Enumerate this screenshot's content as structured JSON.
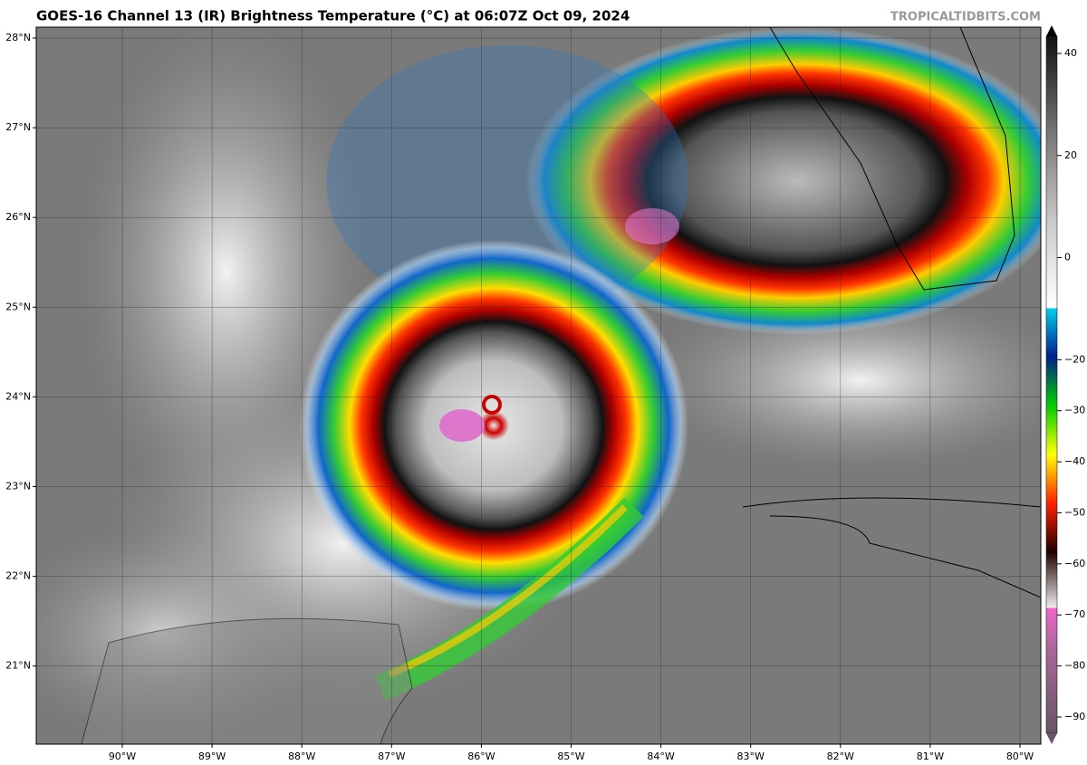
{
  "header": {
    "title": "GOES-16 Channel 13 (IR) Brightness Temperature (°C) at 06:07Z Oct 09, 2024",
    "credit": "TROPICALTIDBITS.COM"
  },
  "map": {
    "lat_ticks": [
      {
        "value": 28,
        "label": "28°N"
      },
      {
        "value": 27,
        "label": "27°N"
      },
      {
        "value": 26,
        "label": "26°N"
      },
      {
        "value": 25,
        "label": "25°N"
      },
      {
        "value": 24,
        "label": "24°N"
      },
      {
        "value": 23,
        "label": "23°N"
      },
      {
        "value": 22,
        "label": "22°N"
      },
      {
        "value": 21,
        "label": "21°N"
      }
    ],
    "lon_ticks": [
      {
        "value": -90,
        "label": "90°W"
      },
      {
        "value": -89,
        "label": "89°W"
      },
      {
        "value": -88,
        "label": "88°W"
      },
      {
        "value": -87,
        "label": "87°W"
      },
      {
        "value": -86,
        "label": "86°W"
      },
      {
        "value": -85,
        "label": "85°W"
      },
      {
        "value": -84,
        "label": "84°W"
      },
      {
        "value": -83,
        "label": "83°W"
      },
      {
        "value": -82,
        "label": "82°W"
      },
      {
        "value": -81,
        "label": "81°W"
      },
      {
        "value": -80,
        "label": "80°W"
      }
    ]
  },
  "colorbar": {
    "ticks": [
      40,
      20,
      0,
      {
        "value": -20,
        "label": "−20"
      },
      {
        "value": -30,
        "label": "−30"
      },
      {
        "value": -40,
        "label": "−40"
      },
      {
        "value": -50,
        "label": "−50"
      },
      {
        "value": -60,
        "label": "−60"
      },
      {
        "value": -70,
        "label": "−70"
      },
      {
        "value": -80,
        "label": "−80"
      },
      {
        "value": -90,
        "label": "−90"
      }
    ]
  }
}
